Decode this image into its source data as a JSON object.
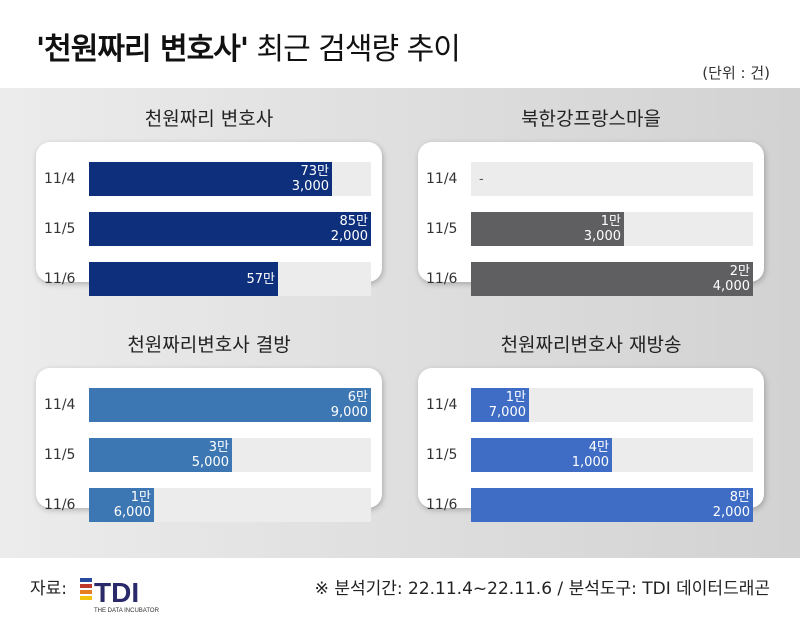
{
  "header": {
    "title_bold": "'천원짜리 변호사'",
    "title_rest": " 최근 검색량 추이",
    "unit": "(단위 : 건)"
  },
  "colors": {
    "navy": "#0d2f7c",
    "gray": "#5f5f61",
    "steel": "#3d77b3",
    "blue": "#3f6cc5",
    "track": "#ececec"
  },
  "chart_data": [
    {
      "type": "bar",
      "title": "천원짜리 변호사",
      "categories": [
        "11/4",
        "11/5",
        "11/6"
      ],
      "values": [
        733000,
        852000,
        570000
      ],
      "labels": [
        [
          "73만",
          "3,000"
        ],
        [
          "85만",
          "2,000"
        ],
        [
          "57만",
          ""
        ]
      ],
      "max": 852000,
      "color": "#0d2f7c"
    },
    {
      "type": "bar",
      "title": "북한강프랑스마을",
      "categories": [
        "11/4",
        "11/5",
        "11/6"
      ],
      "values": [
        0,
        13000,
        24000
      ],
      "labels": [
        [
          "-",
          ""
        ],
        [
          "1만",
          "3,000"
        ],
        [
          "2만",
          "4,000"
        ]
      ],
      "max": 24000,
      "color": "#5f5f61"
    },
    {
      "type": "bar",
      "title": "천원짜리변호사 결방",
      "categories": [
        "11/4",
        "11/5",
        "11/6"
      ],
      "values": [
        69000,
        35000,
        16000
      ],
      "labels": [
        [
          "6만",
          "9,000"
        ],
        [
          "3만",
          "5,000"
        ],
        [
          "1만",
          "6,000"
        ]
      ],
      "max": 69000,
      "color": "#3d77b3"
    },
    {
      "type": "bar",
      "title": "천원짜리변호사 재방송",
      "categories": [
        "11/4",
        "11/5",
        "11/6"
      ],
      "values": [
        17000,
        41000,
        82000
      ],
      "labels": [
        [
          "1만",
          "7,000"
        ],
        [
          "4만",
          "1,000"
        ],
        [
          "8만",
          "2,000"
        ]
      ],
      "max": 82000,
      "color": "#3f6cc5"
    }
  ],
  "footer": {
    "source_label": "자료:",
    "logo_text": "TDI",
    "logo_sub": "THE DATA INCUBATOR",
    "note": "※ 분석기간: 22.11.4~22.11.6  / 분석도구: TDI 데이터드래곤"
  }
}
